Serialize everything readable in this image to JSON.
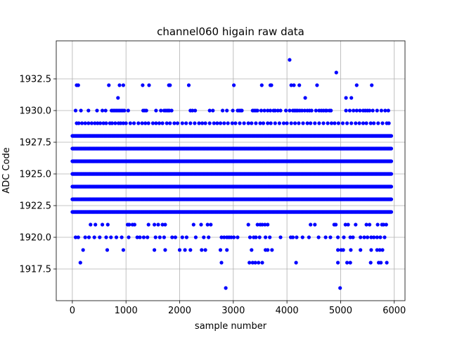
{
  "chart_data": {
    "type": "scatter",
    "title": "channel060 higain raw data",
    "xlabel": "sample number",
    "ylabel": "ADC Code",
    "xlim": [
      -300,
      6200
    ],
    "ylim": [
      1915.0,
      1935.5
    ],
    "xticks": [
      0,
      1000,
      2000,
      3000,
      4000,
      5000,
      6000
    ],
    "xtick_labels": [
      "0",
      "1000",
      "2000",
      "3000",
      "4000",
      "5000",
      "6000"
    ],
    "yticks": [
      1917.5,
      1920.0,
      1922.5,
      1925.0,
      1927.5,
      1930.0,
      1932.5
    ],
    "ytick_labels": [
      "1917.5",
      "1920.0",
      "1922.5",
      "1925.0",
      "1927.5",
      "1930.0",
      "1932.5"
    ],
    "grid": true,
    "marker_color": "#0000ff",
    "n_samples": 5950,
    "dense_levels": [
      1922,
      1923,
      1924,
      1925,
      1926,
      1927,
      1928
    ],
    "sparse_levels": {
      "1929": [
        80,
        120,
        180,
        240,
        300,
        360,
        420,
        470,
        520,
        580,
        630,
        700,
        740,
        800,
        860,
        900,
        950,
        1000,
        1080,
        1150,
        1230,
        1300,
        1360,
        1420,
        1500,
        1560,
        1620,
        1680,
        1760,
        1820,
        1900,
        1960,
        2050,
        2120,
        2200,
        2280,
        2360,
        2420,
        2480,
        2560,
        2640,
        2700,
        2760,
        2830,
        2900,
        2980,
        3040,
        3120,
        3200,
        3280,
        3340,
        3420,
        3500,
        3560,
        3640,
        3700,
        3780,
        3860,
        3940,
        4000,
        4080,
        4150,
        4220,
        4300,
        4380,
        4440,
        4520,
        4600,
        4680,
        4760,
        4830,
        4890,
        4960,
        5040,
        5120,
        5200,
        5280,
        5350,
        5420,
        5480,
        5560,
        5620,
        5700,
        5780,
        5860,
        5900
      ],
      "1930": [
        60,
        160,
        300,
        460,
        560,
        620,
        730,
        760,
        790,
        820,
        850,
        880,
        910,
        940,
        970,
        1040,
        1320,
        1350,
        1380,
        1560,
        1650,
        1710,
        1740,
        1770,
        1790,
        1810,
        1850,
        2200,
        2240,
        2290,
        2560,
        2620,
        2800,
        2880,
        2990,
        3080,
        3110,
        3140,
        3160,
        3360,
        3390,
        3420,
        3450,
        3520,
        3580,
        3640,
        3690,
        3750,
        3780,
        3830,
        3880,
        3980,
        4050,
        4110,
        4140,
        4170,
        4200,
        4240,
        4280,
        4330,
        4380,
        4420,
        4460,
        4540,
        4600,
        4640,
        4680,
        4720,
        4740,
        4790,
        4820,
        5100,
        5170,
        5240,
        5300,
        5360,
        5420,
        5460,
        5500,
        5540,
        5600,
        5680,
        5760,
        5830,
        5890
      ],
      "1931": [
        850,
        4340,
        5100,
        5200
      ],
      "1932": [
        80,
        110,
        680,
        880,
        950,
        1310,
        1430,
        1800,
        1820,
        2170,
        3010,
        3530,
        3690,
        3710,
        4080,
        4130,
        4230,
        4560,
        5300,
        5580
      ],
      "1933": [
        4920
      ],
      "1934": [
        4050
      ],
      "1921": [
        340,
        430,
        560,
        660,
        1030,
        1060,
        1120,
        1160,
        1420,
        1530,
        1600,
        1680,
        1730,
        2260,
        2400,
        2520,
        2580,
        3280,
        3450,
        3500,
        3540,
        3590,
        3640,
        4440,
        4520,
        4880,
        4910,
        5090,
        5140,
        5280,
        5480,
        5540,
        5690,
        5770,
        5800,
        5850
      ],
      "1920": [
        60,
        110,
        240,
        310,
        410,
        510,
        630,
        720,
        820,
        920,
        1050,
        1210,
        1260,
        1330,
        1400,
        1550,
        1630,
        1710,
        1860,
        1920,
        2050,
        2130,
        2300,
        2450,
        2540,
        2780,
        2830,
        2880,
        2920,
        2960,
        3010,
        3080,
        3310,
        3380,
        3420,
        3490,
        3600,
        3680,
        3880,
        4070,
        4110,
        4180,
        4290,
        4410,
        4590,
        4720,
        4810,
        4950,
        5060,
        5180,
        5230,
        5370,
        5440,
        5500,
        5570,
        5620,
        5680,
        5740,
        5820
      ],
      "1919": [
        200,
        650,
        950,
        1530,
        1730,
        2000,
        2100,
        2200,
        2410,
        2480,
        2760,
        2880,
        3340,
        3600,
        3640,
        3720,
        4950,
        5010,
        5050,
        5190,
        5370,
        5570,
        5680,
        5730,
        5780
      ],
      "1918": [
        150,
        2780,
        3300,
        3360,
        3410,
        3470,
        3540,
        4170,
        4950,
        5120,
        5180,
        5560,
        5710,
        5750,
        5860
      ],
      "1916": [
        2860,
        4990
      ]
    }
  }
}
